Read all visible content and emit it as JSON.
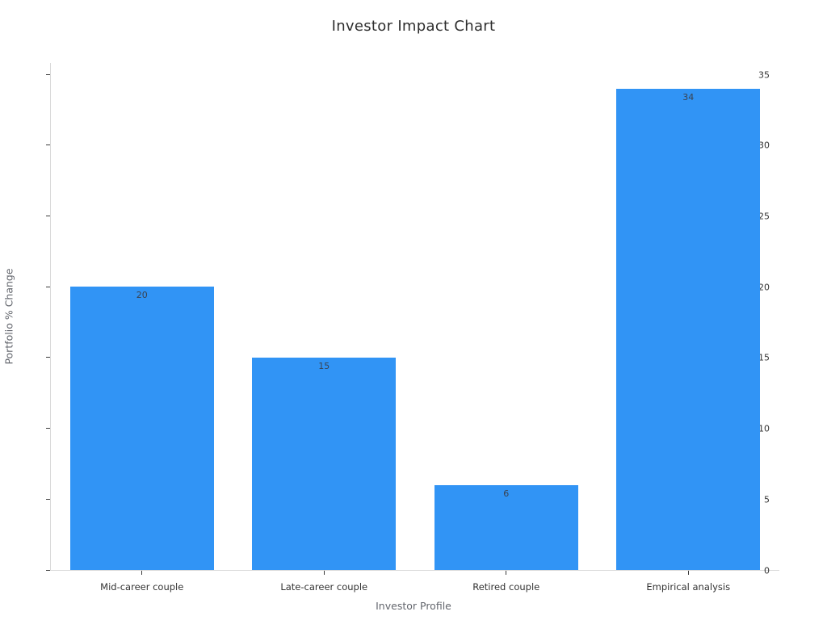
{
  "chart": {
    "title": "Investor Impact Chart",
    "xlabel": "Investor Profile",
    "ylabel": "Portfolio % Change"
  },
  "chart_data": {
    "type": "bar",
    "title": "Investor Impact Chart",
    "xlabel": "Investor Profile",
    "ylabel": "Portfolio % Change",
    "categories": [
      "Mid-career couple",
      "Late-career couple",
      "Retired couple",
      "Empirical analysis"
    ],
    "values": [
      20,
      15,
      6,
      34
    ],
    "value_labels": [
      "20",
      "15",
      "6",
      "34"
    ],
    "ylim": [
      0,
      35.8
    ],
    "yticks": [
      0,
      5,
      10,
      15,
      20,
      25,
      30,
      35
    ],
    "bar_color": "#3194f5",
    "value_label_color": "#3a4250",
    "bar_width_fraction": 0.79,
    "grid": false,
    "legend": false
  }
}
